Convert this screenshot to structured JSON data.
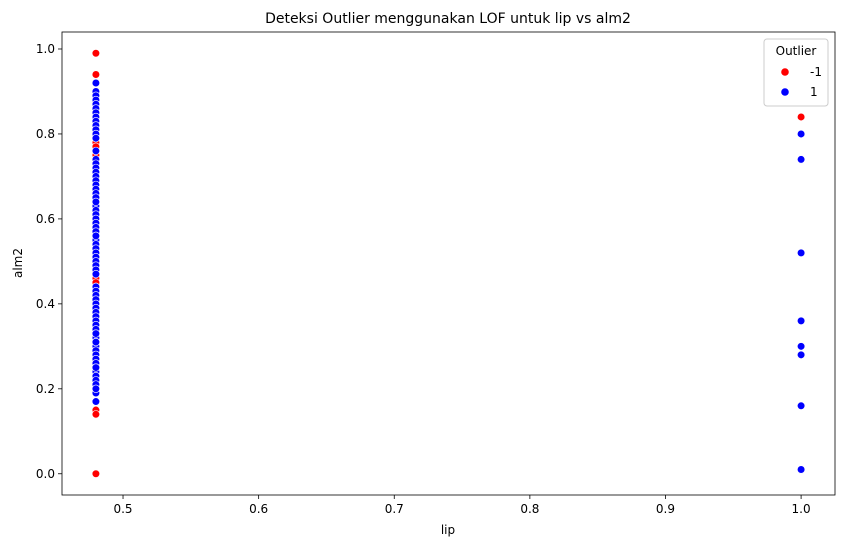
{
  "chart_data": {
    "type": "scatter",
    "title": "Deteksi Outlier menggunakan LOF untuk lip vs alm2",
    "xlabel": "lip",
    "ylabel": "alm2",
    "xlim": [
      0.455,
      1.025
    ],
    "ylim": [
      -0.05,
      1.04
    ],
    "xticks": [
      "0.5",
      "0.6",
      "0.7",
      "0.8",
      "0.9",
      "1.0"
    ],
    "yticks": [
      "0.0",
      "0.2",
      "0.4",
      "0.6",
      "0.8",
      "1.0"
    ],
    "grid": false,
    "legend": {
      "title": "Outlier",
      "position": "top-right"
    },
    "colors": {
      "-1": "#ff0000",
      "1": "#0000ff"
    },
    "series": [
      {
        "name": "-1",
        "x": [
          0.48,
          0.48,
          0.48,
          0.48,
          0.48,
          0.48,
          0.48,
          0.48,
          0.48,
          0.48,
          0.48,
          0.48,
          0.48,
          0.48,
          0.48,
          0.48,
          0.48,
          0.48,
          0.48,
          0.48,
          0.48,
          0.48,
          0.48,
          0.48,
          0.48,
          1.0
        ],
        "y": [
          0.99,
          0.94,
          0.9,
          0.78,
          0.77,
          0.75,
          0.74,
          0.72,
          0.66,
          0.6,
          0.55,
          0.51,
          0.5,
          0.47,
          0.46,
          0.45,
          0.44,
          0.42,
          0.3,
          0.29,
          0.28,
          0.27,
          0.15,
          0.14,
          0.0,
          0.84
        ]
      },
      {
        "name": "1",
        "x": [
          0.48,
          0.48,
          0.48,
          0.48,
          0.48,
          0.48,
          0.48,
          0.48,
          0.48,
          0.48,
          0.48,
          0.48,
          0.48,
          0.48,
          0.48,
          0.48,
          0.48,
          0.48,
          0.48,
          0.48,
          0.48,
          0.48,
          0.48,
          0.48,
          0.48,
          0.48,
          0.48,
          0.48,
          0.48,
          0.48,
          0.48,
          0.48,
          0.48,
          0.48,
          0.48,
          0.48,
          0.48,
          0.48,
          0.48,
          0.48,
          0.48,
          0.48,
          0.48,
          0.48,
          0.48,
          0.48,
          0.48,
          0.48,
          0.48,
          0.48,
          0.48,
          0.48,
          0.48,
          0.48,
          0.48,
          0.48,
          0.48,
          0.48,
          0.48,
          0.48,
          0.48,
          0.48,
          0.48,
          0.48,
          0.48,
          0.48,
          0.48,
          0.48,
          0.48,
          0.48,
          0.48,
          0.48,
          0.48,
          0.48,
          1.0,
          1.0,
          1.0,
          1.0,
          1.0,
          1.0,
          1.0,
          1.0
        ],
        "y": [
          0.92,
          0.9,
          0.89,
          0.88,
          0.87,
          0.86,
          0.85,
          0.84,
          0.83,
          0.82,
          0.81,
          0.8,
          0.79,
          0.76,
          0.74,
          0.73,
          0.72,
          0.71,
          0.7,
          0.69,
          0.68,
          0.67,
          0.66,
          0.65,
          0.63,
          0.62,
          0.61,
          0.6,
          0.59,
          0.58,
          0.57,
          0.56,
          0.55,
          0.54,
          0.53,
          0.52,
          0.51,
          0.5,
          0.49,
          0.48,
          0.47,
          0.44,
          0.43,
          0.42,
          0.41,
          0.4,
          0.39,
          0.38,
          0.37,
          0.36,
          0.35,
          0.34,
          0.33,
          0.32,
          0.31,
          0.3,
          0.29,
          0.28,
          0.27,
          0.26,
          0.25,
          0.24,
          0.23,
          0.22,
          0.21,
          0.2,
          0.19,
          0.17,
          0.33,
          0.31,
          0.25,
          0.2,
          0.64,
          0.56,
          0.8,
          0.74,
          0.52,
          0.36,
          0.3,
          0.28,
          0.16,
          0.01
        ]
      }
    ]
  }
}
